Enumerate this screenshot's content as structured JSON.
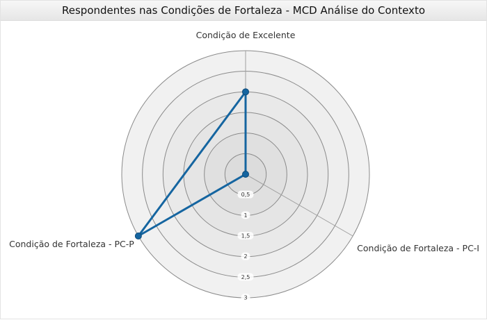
{
  "chart_data": {
    "type": "radar",
    "title": "Respondentes nas Condições de Fortaleza - MCD Análise do Contexto",
    "axes": [
      "Condição de Excelente",
      "Condição de Fortaleza - PC-I",
      "Condição de Fortaleza - PC-P"
    ],
    "series": [
      {
        "values": [
          2,
          0,
          3
        ]
      }
    ],
    "rlim": [
      0,
      3
    ],
    "ticks": [
      "0,5",
      "1",
      "1,5",
      "2",
      "2,5",
      "3"
    ],
    "tick_values": [
      0.5,
      1,
      1.5,
      2,
      2.5,
      3
    ],
    "grid": true,
    "colors": {
      "series": "#1565a0",
      "ring_fill_outer": "#f1f1f1",
      "ring_fill_inner": "#dcdcdc",
      "grid_line": "#8a8a8a"
    }
  }
}
